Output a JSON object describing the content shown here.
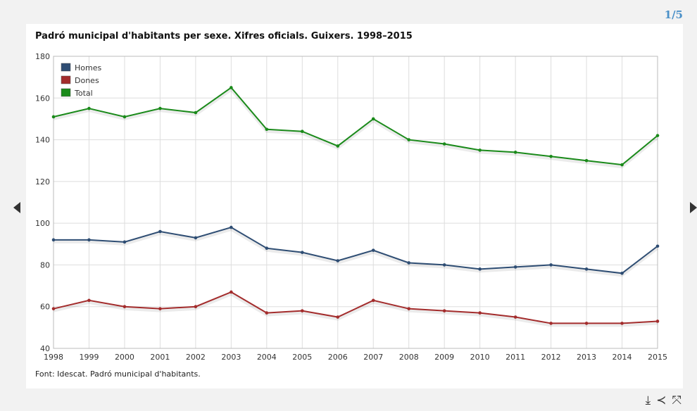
{
  "pager": {
    "label": "1/5"
  },
  "chart_title": "Padró municipal d'habitants per sexe. Xifres oficials. Guixers. 1998–2015",
  "source": "Font: Idescat. Padró municipal d'habitants.",
  "icons": {
    "download": "download-icon",
    "share": "share-icon",
    "fullscreen": "fullscreen-icon",
    "prev": "chevron-left-icon",
    "next": "chevron-right-icon"
  },
  "chart_data": {
    "type": "line",
    "title": "Padró municipal d'habitants per sexe. Xifres oficials. Guixers. 1998–2015",
    "xlabel": "",
    "ylabel": "",
    "ylim": [
      40,
      180
    ],
    "yticks": [
      40,
      60,
      80,
      100,
      120,
      140,
      160,
      180
    ],
    "grid": true,
    "legend_position": "top-left",
    "categories": [
      "1998",
      "1999",
      "2000",
      "2001",
      "2002",
      "2003",
      "2004",
      "2005",
      "2006",
      "2007",
      "2008",
      "2009",
      "2010",
      "2011",
      "2012",
      "2013",
      "2014",
      "2015"
    ],
    "series": [
      {
        "name": "Homes",
        "color": "#2e4d73",
        "values": [
          92,
          92,
          91,
          96,
          93,
          98,
          88,
          86,
          82,
          87,
          81,
          80,
          78,
          79,
          80,
          78,
          76,
          89
        ]
      },
      {
        "name": "Dones",
        "color": "#a32c2c",
        "values": [
          59,
          63,
          60,
          59,
          60,
          67,
          57,
          58,
          55,
          63,
          59,
          58,
          57,
          55,
          52,
          52,
          52,
          53
        ]
      },
      {
        "name": "Total",
        "color": "#1a8a1a",
        "values": [
          151,
          155,
          151,
          155,
          153,
          165,
          145,
          144,
          137,
          150,
          140,
          138,
          135,
          134,
          132,
          130,
          128,
          142
        ]
      }
    ]
  }
}
